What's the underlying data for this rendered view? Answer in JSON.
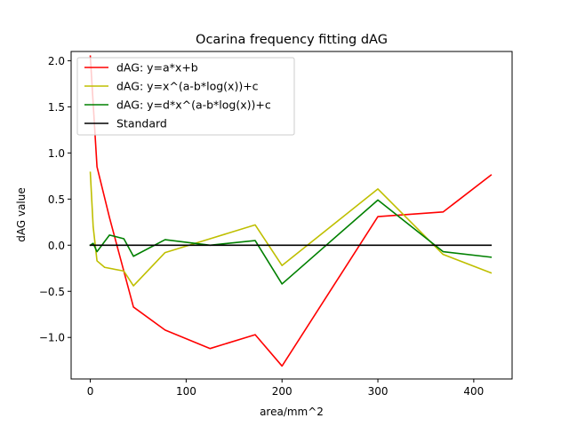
{
  "chart_data": {
    "type": "line",
    "title": "Ocarina frequency fitting dAG",
    "xlabel": "area/mm^2",
    "ylabel": "dAG value",
    "xlim": [
      -20,
      440
    ],
    "ylim": [
      -1.45,
      2.1
    ],
    "xticks": [
      0,
      100,
      200,
      300,
      400
    ],
    "yticks": [
      -1.0,
      -0.5,
      0.0,
      0.5,
      1.0,
      1.5,
      2.0
    ],
    "grid": false,
    "legend_position": "top-left",
    "series": [
      {
        "name": "dAG: y=a*x+b",
        "color": "#ff0000",
        "x": [
          0,
          7,
          20,
          45,
          78,
          125,
          172,
          200,
          300,
          368,
          418
        ],
        "y": [
          2.05,
          0.85,
          0.3,
          -0.67,
          -0.92,
          -1.12,
          -0.97,
          -1.31,
          0.31,
          0.36,
          0.76
        ]
      },
      {
        "name": "dAG: y=x^(a-b*log(x))+c",
        "color": "#bfbf00",
        "x": [
          0,
          3,
          7,
          15,
          35,
          45,
          78,
          125,
          172,
          200,
          300,
          368,
          418
        ],
        "y": [
          0.79,
          0.2,
          -0.17,
          -0.24,
          -0.28,
          -0.44,
          -0.08,
          0.07,
          0.22,
          -0.22,
          0.61,
          -0.1,
          -0.3
        ]
      },
      {
        "name": "dAG: y=d*x^(a-b*log(x))+c",
        "color": "#008000",
        "x": [
          0,
          3,
          7,
          20,
          35,
          45,
          78,
          125,
          172,
          200,
          300,
          368,
          418
        ],
        "y": [
          0.0,
          0.02,
          -0.07,
          0.11,
          0.07,
          -0.12,
          0.06,
          0.0,
          0.05,
          -0.42,
          0.49,
          -0.07,
          -0.13
        ]
      },
      {
        "name": "Standard",
        "color": "#000000",
        "x": [
          0,
          418
        ],
        "y": [
          0.0,
          0.0
        ]
      }
    ]
  }
}
